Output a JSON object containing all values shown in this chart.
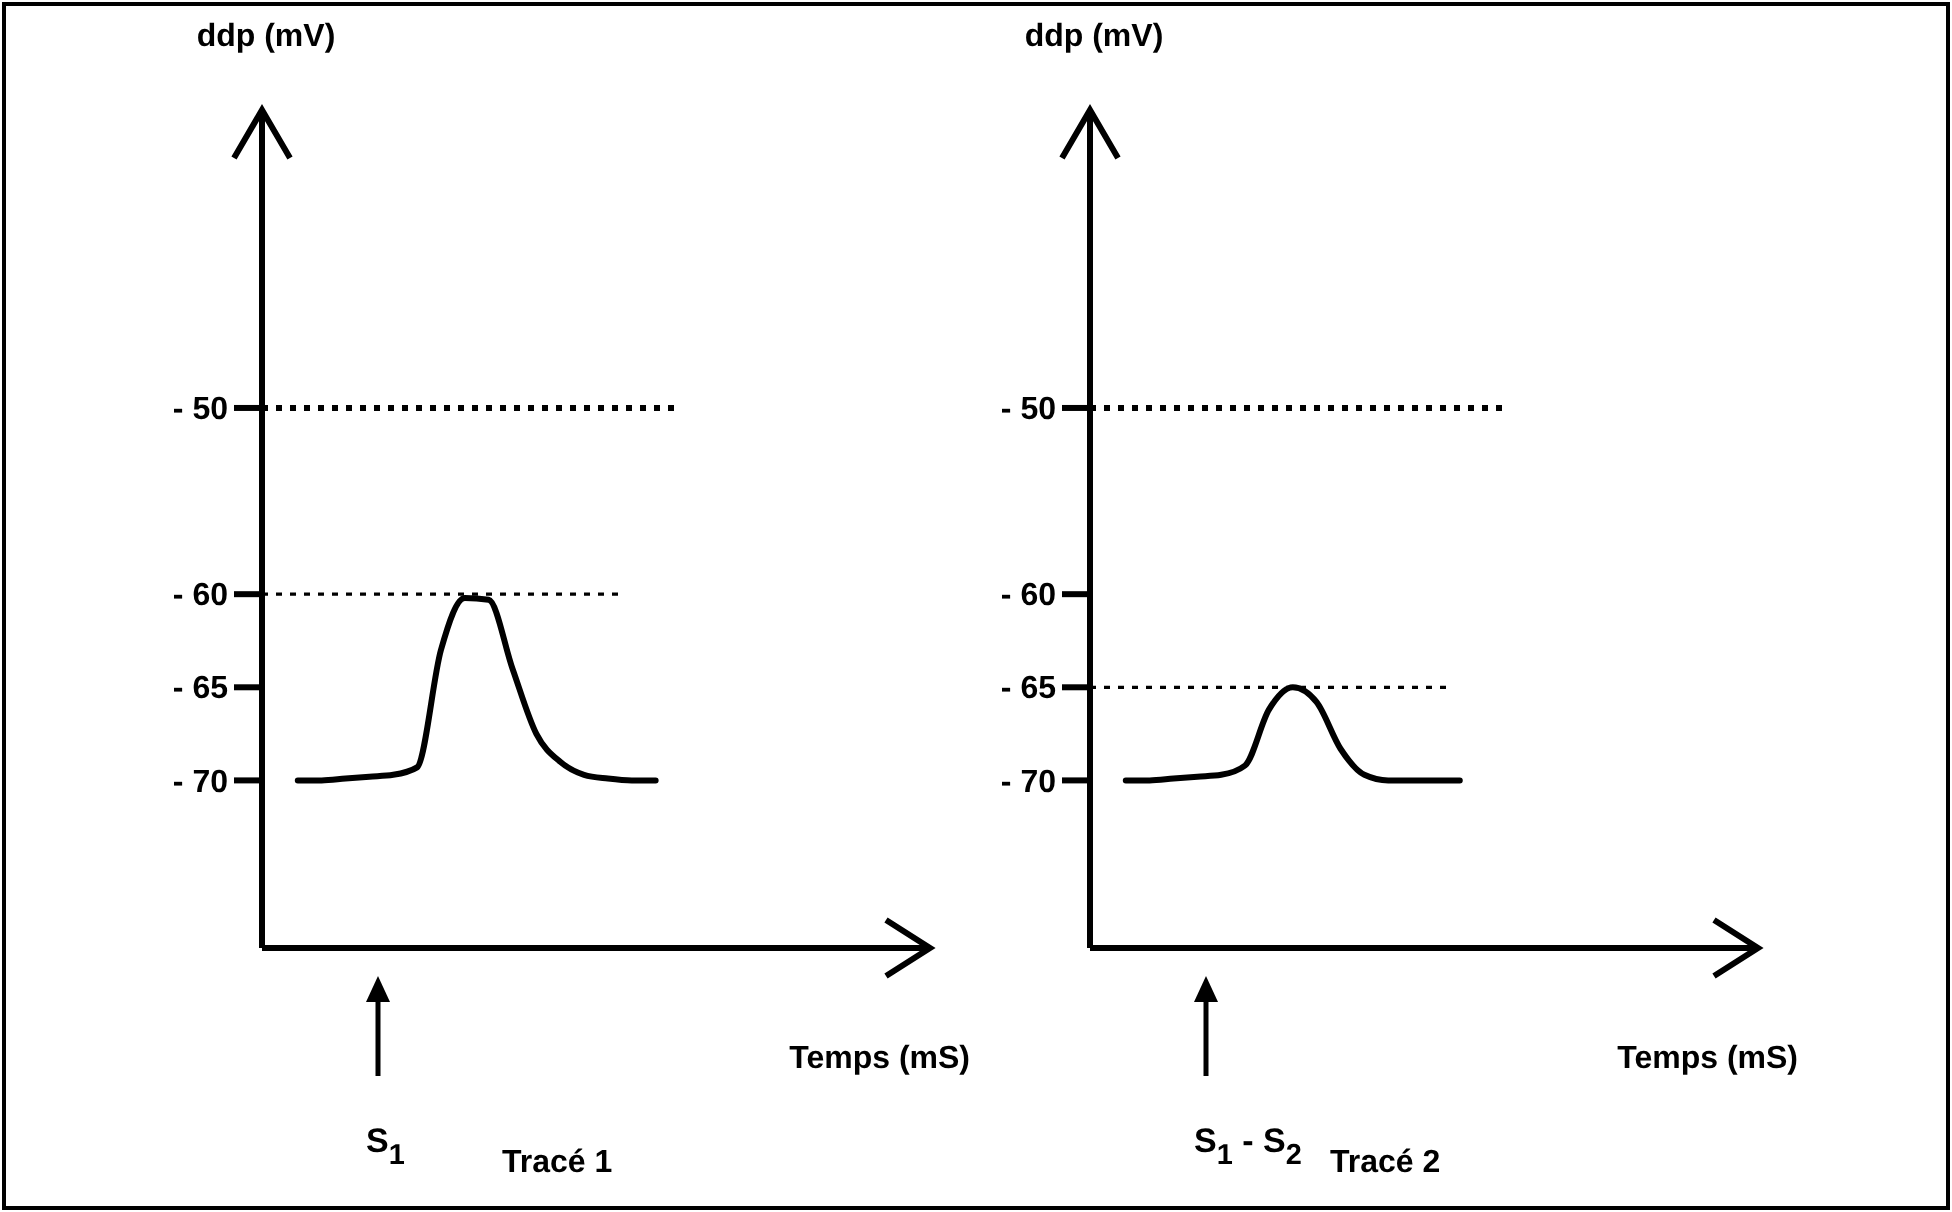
{
  "chart_data": [
    {
      "type": "line",
      "title": "Tracé 1",
      "ylabel": "ddp (mV)",
      "xlabel": "Temps (mS)",
      "categories": [
        null,
        null,
        null,
        null,
        null,
        null,
        null,
        null,
        null,
        null,
        null,
        null,
        null,
        null,
        null,
        null,
        null,
        null,
        null,
        null,
        null,
        null,
        null,
        null,
        null,
        null,
        null,
        null
      ],
      "series": [
        {
          "color": "#000000",
          "values": [
            null,
            -70,
            -70,
            -69.9,
            -69.8,
            -69.7,
            -69.3,
            -63,
            -60.2,
            -60.3,
            -64,
            -67.5,
            -69,
            -69.7,
            -69.9,
            -70,
            -70,
            null,
            null,
            null,
            null,
            null,
            null,
            null,
            null,
            null,
            null,
            null
          ]
        }
      ],
      "ylim": [
        -79,
        -34
      ],
      "yticks": [
        {
          "value": -50,
          "label": "- 50"
        },
        {
          "value": -60,
          "label": "- 60"
        },
        {
          "value": -65,
          "label": "- 65"
        },
        {
          "value": -70,
          "label": "- 70"
        }
      ],
      "ref_lines": [
        {
          "axis": "y",
          "value": -50,
          "line_style": "dotted",
          "color": "#000000"
        },
        {
          "axis": "y",
          "value": -60,
          "line_style": "dotted",
          "color": "#000000"
        }
      ],
      "annotations": [
        "S$_{1}$"
      ]
    },
    {
      "type": "line",
      "title": "Tracé 2",
      "ylabel": "ddp (mV)",
      "xlabel": "Temps (mS)",
      "categories": [
        null,
        null,
        null,
        null,
        null,
        null,
        null,
        null,
        null,
        null,
        null,
        null,
        null,
        null,
        null,
        null,
        null,
        null,
        null,
        null,
        null,
        null,
        null,
        null,
        null,
        null,
        null,
        null
      ],
      "series": [
        {
          "color": "#000000",
          "values": [
            null,
            -70,
            -70,
            -69.9,
            -69.8,
            -69.7,
            -69.2,
            -66.2,
            -65,
            -65.8,
            -68.3,
            -69.7,
            -70,
            -70,
            -70,
            -70,
            null,
            null,
            null,
            null,
            null,
            null,
            null,
            null,
            null,
            null,
            null,
            null
          ]
        }
      ],
      "ylim": [
        -79,
        -34
      ],
      "yticks": [
        {
          "value": -50,
          "label": "- 50"
        },
        {
          "value": -60,
          "label": "- 60"
        },
        {
          "value": -65,
          "label": "- 65"
        },
        {
          "value": -70,
          "label": "- 70"
        }
      ],
      "ref_lines": [
        {
          "axis": "y",
          "value": -50,
          "line_style": "dotted",
          "color": "#000000"
        },
        {
          "axis": "y",
          "value": -65,
          "line_style": "dotted",
          "color": "#000000"
        }
      ],
      "annotations": [
        "S$_{1}$ - S$_{2}$"
      ]
    }
  ]
}
